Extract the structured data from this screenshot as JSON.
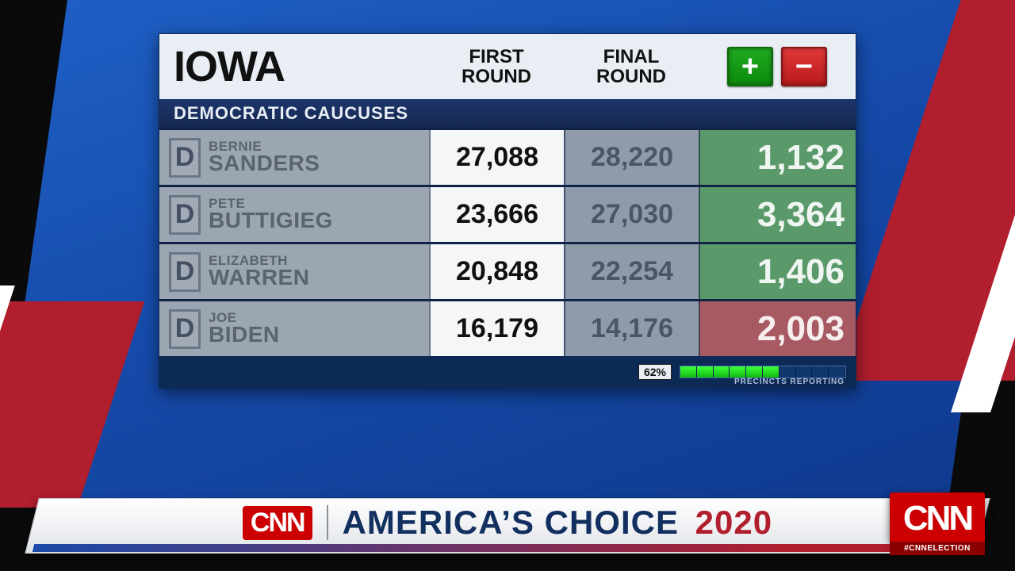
{
  "board": {
    "state": "IOWA",
    "columns": {
      "first": "FIRST\nROUND",
      "final": "FINAL\nROUND"
    },
    "legend": {
      "plus": "+",
      "minus": "−"
    },
    "subheader": "DEMOCRATIC CAUCUSES",
    "party_letter": "D",
    "candidates": [
      {
        "first": "BERNIE",
        "last": "SANDERS",
        "first_round": "27,088",
        "final_round": "28,220",
        "delta": "1,132",
        "dir": "pos"
      },
      {
        "first": "PETE",
        "last": "BUTTIGIEG",
        "first_round": "23,666",
        "final_round": "27,030",
        "delta": "3,364",
        "dir": "pos"
      },
      {
        "first": "ELIZABETH",
        "last": "WARREN",
        "first_round": "20,848",
        "final_round": "22,254",
        "delta": "1,406",
        "dir": "pos"
      },
      {
        "first": "JOE",
        "last": "BIDEN",
        "first_round": "16,179",
        "final_round": "14,176",
        "delta": "2,003",
        "dir": "neg"
      }
    ],
    "reporting": {
      "percent_label": "62%",
      "percent": 62,
      "segments": 10,
      "footer_label": "PRECINCTS REPORTING"
    }
  },
  "lower_third": {
    "logo_text": "CNN",
    "title_a": "AMERICA’S CHOICE",
    "title_year": "2020"
  },
  "bug": {
    "logo_text": "CNN",
    "hashtag": "#CNNELECTION"
  },
  "colors": {
    "delta_pos_bg": "#5a9a6a",
    "delta_neg_bg": "#a85a62",
    "plus_bg": "#1faa1f",
    "minus_bg": "#e23a3a",
    "cnn_red": "#cc0000",
    "board_navy": "#0c2a55",
    "blue_panel": "#1549a8",
    "stripe_red": "#b11e2e"
  }
}
